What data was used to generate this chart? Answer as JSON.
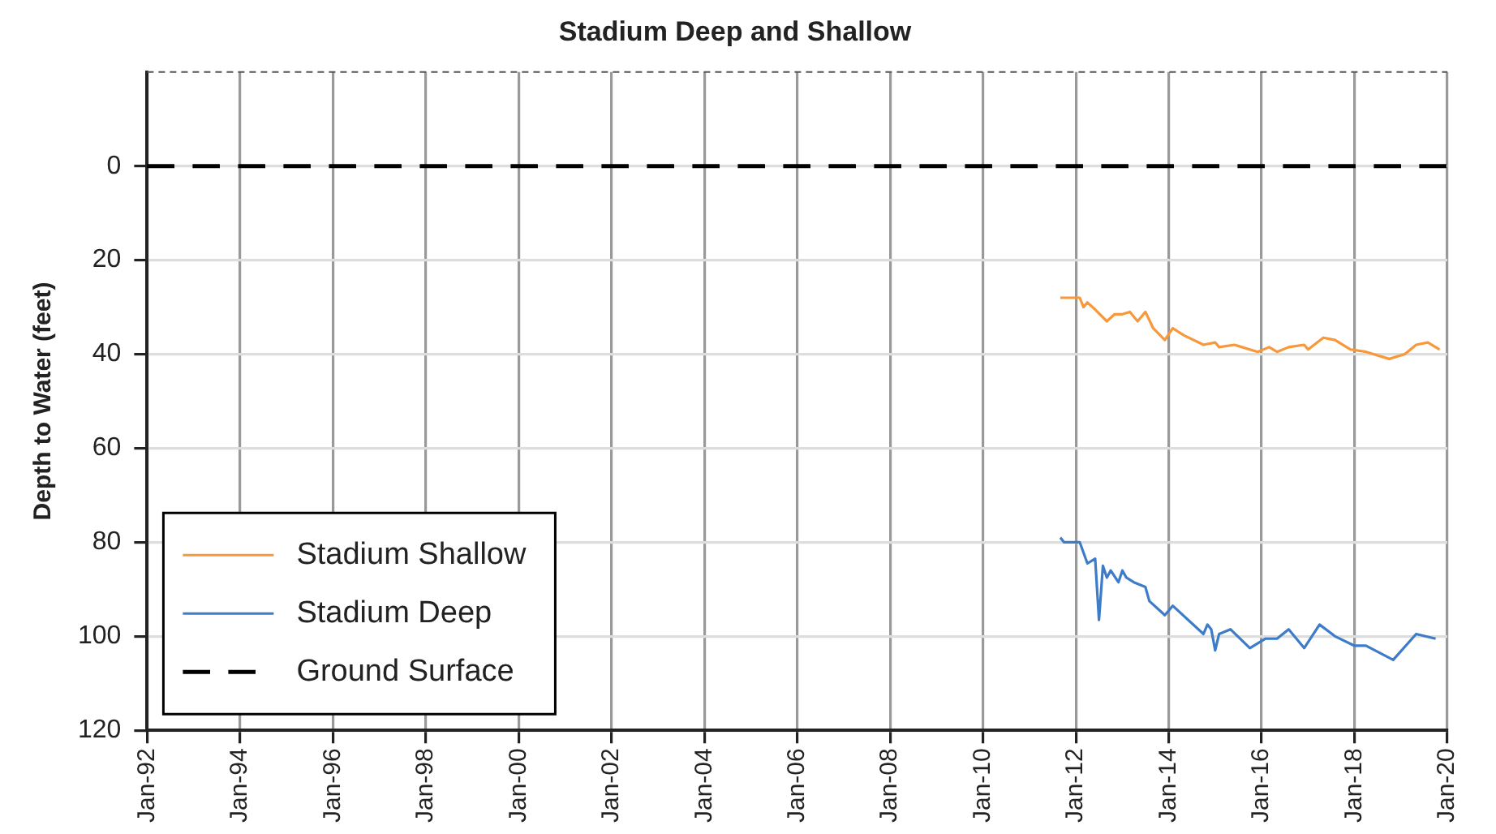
{
  "chart_data": {
    "type": "line",
    "title": "Stadium Deep and Shallow",
    "ylabel": "Depth to Water (feet)",
    "xlim": [
      "1992-01",
      "2020-01"
    ],
    "xticks": [
      {
        "value": "1992-01",
        "label": "Jan-92"
      },
      {
        "value": "1994-01",
        "label": "Jan-94"
      },
      {
        "value": "1996-01",
        "label": "Jan-96"
      },
      {
        "value": "1998-01",
        "label": "Jan-98"
      },
      {
        "value": "2000-01",
        "label": "Jan-00"
      },
      {
        "value": "2002-01",
        "label": "Jan-02"
      },
      {
        "value": "2004-01",
        "label": "Jan-04"
      },
      {
        "value": "2006-01",
        "label": "Jan-06"
      },
      {
        "value": "2008-01",
        "label": "Jan-08"
      },
      {
        "value": "2010-01",
        "label": "Jan-10"
      },
      {
        "value": "2012-01",
        "label": "Jan-12"
      },
      {
        "value": "2014-01",
        "label": "Jan-14"
      },
      {
        "value": "2016-01",
        "label": "Jan-16"
      },
      {
        "value": "2018-01",
        "label": "Jan-18"
      },
      {
        "value": "2020-01",
        "label": "Jan-20"
      }
    ],
    "ylim": [
      120,
      -20
    ],
    "yticks": [
      0,
      20,
      40,
      60,
      80,
      100,
      120
    ],
    "grid": true,
    "legend": "bottom left",
    "marker": "none",
    "line_style": "solid",
    "series": [
      {
        "name": "Stadium Shallow",
        "color": "#f7983a",
        "x": [
          "2011-09",
          "2012-02",
          "2012-03",
          "2012-04",
          "2012-06",
          "2012-09",
          "2012-11",
          "2013-01",
          "2013-03",
          "2013-05",
          "2013-07",
          "2013-09",
          "2013-12",
          "2014-02",
          "2014-05",
          "2014-10",
          "2015-01",
          "2015-02",
          "2015-06",
          "2015-12",
          "2016-03",
          "2016-05",
          "2016-08",
          "2016-12",
          "2017-01",
          "2017-05",
          "2017-08",
          "2017-12",
          "2018-04",
          "2018-10",
          "2019-02",
          "2019-05",
          "2019-08",
          "2019-11"
        ],
        "values": [
          28,
          28,
          30,
          29,
          30.5,
          33,
          31.5,
          31.5,
          31,
          33,
          31,
          34.5,
          37,
          34.5,
          36,
          38,
          37.5,
          38.5,
          38,
          39.5,
          38.5,
          39.5,
          38.5,
          38,
          39,
          36.5,
          37,
          39,
          39.5,
          41,
          40,
          38,
          37.5,
          39
        ]
      },
      {
        "name": "Stadium Deep",
        "color": "#3d7cc9",
        "x": [
          "2011-09",
          "2011-10",
          "2012-02",
          "2012-04",
          "2012-06",
          "2012-07",
          "2012-08",
          "2012-09",
          "2012-10",
          "2012-12",
          "2013-01",
          "2013-02",
          "2013-04",
          "2013-07",
          "2013-08",
          "2013-12",
          "2014-02",
          "2014-10",
          "2014-11",
          "2014-12",
          "2015-01",
          "2015-02",
          "2015-05",
          "2015-10",
          "2016-02",
          "2016-05",
          "2016-08",
          "2016-12",
          "2017-04",
          "2017-08",
          "2018-01",
          "2018-04",
          "2018-11",
          "2019-05",
          "2019-10"
        ],
        "values": [
          79,
          80,
          80,
          84.5,
          83.5,
          96.5,
          85,
          87.5,
          86,
          88.5,
          86,
          87.5,
          88.5,
          89.5,
          92.5,
          95.5,
          93.5,
          99.5,
          97.5,
          98.5,
          103,
          99.5,
          98.5,
          102.5,
          100.5,
          100.5,
          98.5,
          102.5,
          97.5,
          100,
          102,
          102,
          105,
          99.5,
          100.5
        ]
      }
    ],
    "ref_lines": [
      {
        "axis": "y",
        "value": 0,
        "label": "Ground Surface",
        "color": "#000000",
        "line_style": "dashed"
      }
    ]
  }
}
